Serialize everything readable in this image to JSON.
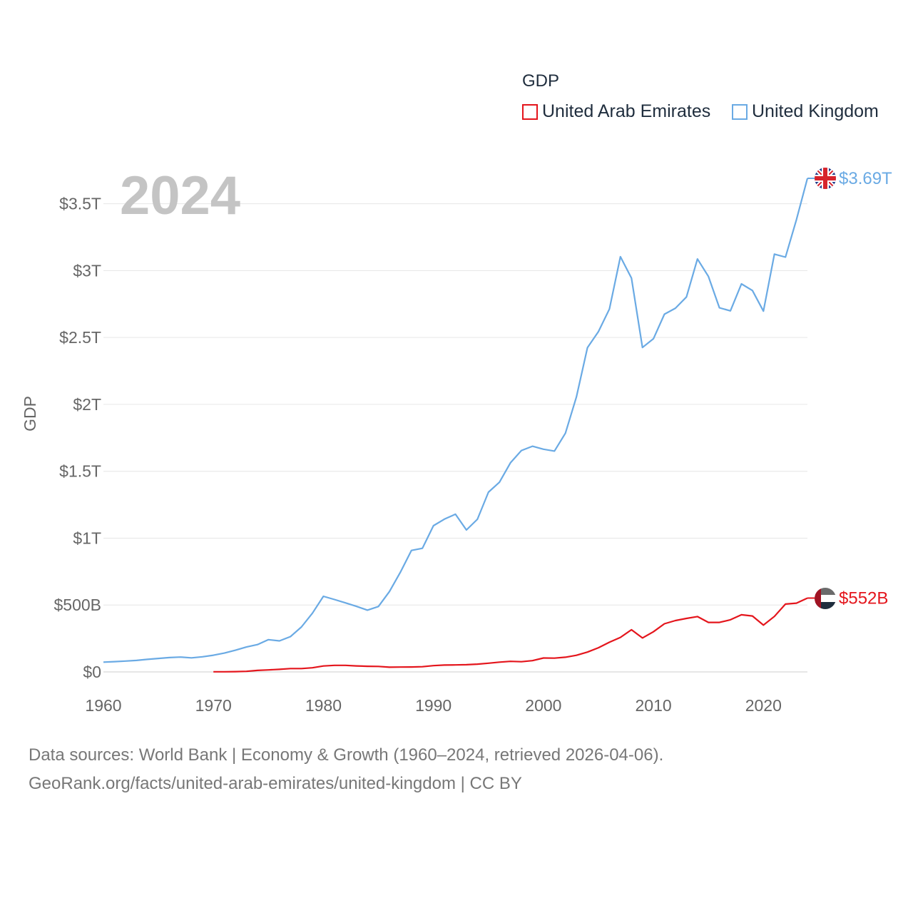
{
  "legend": {
    "title": "GDP",
    "items": [
      {
        "name": "United Arab Emirates",
        "color": "#e4151c"
      },
      {
        "name": "United Kingdom",
        "color": "#6aaae4"
      }
    ]
  },
  "year_label": "2024",
  "footer": {
    "line1": "Data sources: World Bank | Economy & Growth (1960–2024, retrieved 2026-04-06).",
    "line2": "GeoRank.org/facts/united-arab-emirates/united-kingdom | CC BY"
  },
  "chart_data": {
    "type": "line",
    "title": "GDP",
    "xlabel": "",
    "ylabel": "GDP",
    "xlim": [
      1960,
      2024
    ],
    "ylim": [
      0,
      3.69
    ],
    "y_unit": "trillion USD",
    "x_ticks": [
      1960,
      1970,
      1980,
      1990,
      2000,
      2010,
      2020
    ],
    "x_tick_labels": [
      "1960",
      "1970",
      "1980",
      "1990",
      "2000",
      "2010",
      "2020"
    ],
    "y_ticks": [
      0,
      0.5,
      1,
      1.5,
      2,
      2.5,
      3,
      3.5
    ],
    "y_tick_labels": [
      "$0",
      "$500B",
      "$1T",
      "$1.5T",
      "$2T",
      "$2.5T",
      "$3T",
      "$3.5T"
    ],
    "grid": true,
    "series": [
      {
        "name": "United Kingdom",
        "color": "#6aaae4",
        "end_label": "$3.69T",
        "flag": "uk-flag-icon",
        "x": [
          1960,
          1961,
          1962,
          1963,
          1964,
          1965,
          1966,
          1967,
          1968,
          1969,
          1970,
          1971,
          1972,
          1973,
          1974,
          1975,
          1976,
          1977,
          1978,
          1979,
          1980,
          1981,
          1982,
          1983,
          1984,
          1985,
          1986,
          1987,
          1988,
          1989,
          1990,
          1991,
          1992,
          1993,
          1994,
          1995,
          1996,
          1997,
          1998,
          1999,
          2000,
          2001,
          2002,
          2003,
          2004,
          2005,
          2006,
          2007,
          2008,
          2009,
          2010,
          2011,
          2012,
          2013,
          2014,
          2015,
          2016,
          2017,
          2018,
          2019,
          2020,
          2021,
          2022,
          2023,
          2024
        ],
        "values": [
          0.073,
          0.077,
          0.081,
          0.086,
          0.094,
          0.101,
          0.107,
          0.111,
          0.105,
          0.113,
          0.125,
          0.141,
          0.162,
          0.186,
          0.204,
          0.241,
          0.232,
          0.264,
          0.336,
          0.439,
          0.565,
          0.541,
          0.516,
          0.49,
          0.462,
          0.489,
          0.601,
          0.746,
          0.908,
          0.924,
          1.093,
          1.142,
          1.179,
          1.061,
          1.141,
          1.344,
          1.418,
          1.563,
          1.655,
          1.687,
          1.665,
          1.651,
          1.785,
          2.055,
          2.424,
          2.544,
          2.713,
          3.104,
          2.944,
          2.425,
          2.491,
          2.674,
          2.719,
          2.803,
          3.087,
          2.956,
          2.722,
          2.699,
          2.901,
          2.851,
          2.697,
          3.123,
          3.101,
          3.381,
          3.69
        ]
      },
      {
        "name": "United Arab Emirates",
        "color": "#e4151c",
        "end_label": "$552B",
        "flag": "uae-flag-icon",
        "x": [
          1970,
          1971,
          1972,
          1973,
          1974,
          1975,
          1976,
          1977,
          1978,
          1979,
          1980,
          1981,
          1982,
          1983,
          1984,
          1985,
          1986,
          1987,
          1988,
          1989,
          1990,
          1991,
          1992,
          1993,
          1994,
          1995,
          1996,
          1997,
          1998,
          1999,
          2000,
          2001,
          2002,
          2003,
          2004,
          2005,
          2006,
          2007,
          2008,
          2009,
          2010,
          2011,
          2012,
          2013,
          2014,
          2015,
          2016,
          2017,
          2018,
          2019,
          2020,
          2021,
          2022,
          2023,
          2024
        ],
        "values": [
          0.001,
          0.001,
          0.002,
          0.004,
          0.011,
          0.015,
          0.019,
          0.025,
          0.025,
          0.031,
          0.044,
          0.049,
          0.049,
          0.045,
          0.042,
          0.041,
          0.035,
          0.036,
          0.037,
          0.039,
          0.047,
          0.051,
          0.052,
          0.054,
          0.058,
          0.065,
          0.073,
          0.079,
          0.076,
          0.084,
          0.104,
          0.103,
          0.11,
          0.124,
          0.148,
          0.181,
          0.222,
          0.258,
          0.315,
          0.254,
          0.3,
          0.36,
          0.384,
          0.4,
          0.414,
          0.37,
          0.37,
          0.39,
          0.427,
          0.418,
          0.35,
          0.415,
          0.507,
          0.514,
          0.552
        ]
      }
    ]
  }
}
